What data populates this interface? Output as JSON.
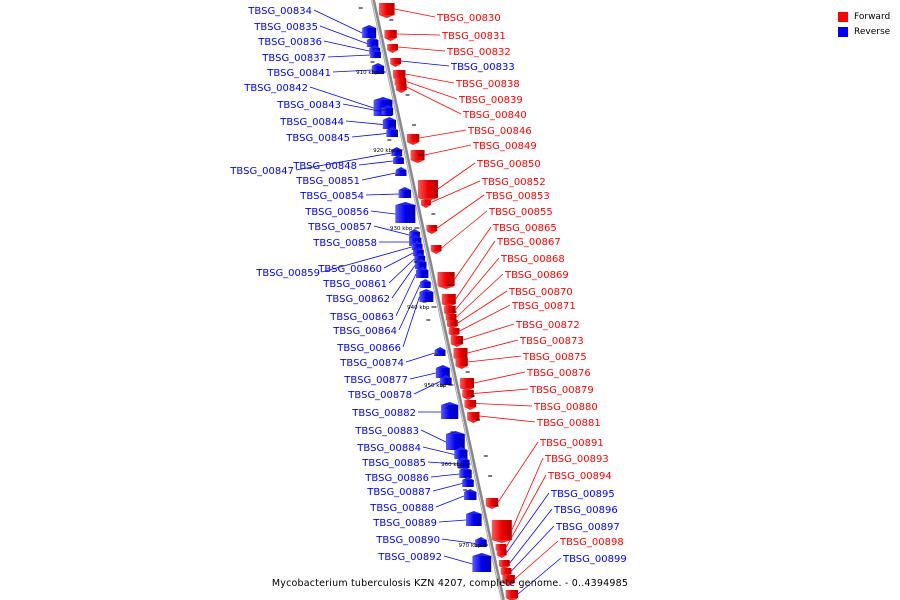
{
  "legend": {
    "forward": {
      "label": "Forward",
      "color": "#ff0000"
    },
    "reverse": {
      "label": "Reverse",
      "color": "#0000ff"
    }
  },
  "caption": "Mycobacterium tuberculosis KZN 4207, complete genome. - 0..4394985",
  "scale_ticks": [
    "910 kbp",
    "920 kbp",
    "930 kbp",
    "940 kbp",
    "950 kbp",
    "960 kbp",
    "970 kbp"
  ],
  "genes": {
    "reverse": [
      "TBSG_00834",
      "TBSG_00835",
      "TBSG_00836",
      "TBSG_00837",
      "TBSG_00841",
      "TBSG_00842",
      "TBSG_00843",
      "TBSG_00844",
      "TBSG_00845",
      "TBSG_00847",
      "TBSG_00848",
      "TBSG_00851",
      "TBSG_00854",
      "TBSG_00856",
      "TBSG_00857",
      "TBSG_00858",
      "TBSG_00859",
      "TBSG_00860",
      "TBSG_00861",
      "TBSG_00862",
      "TBSG_00863",
      "TBSG_00864",
      "TBSG_00866",
      "TBSG_00874",
      "TBSG_00877",
      "TBSG_00878",
      "TBSG_00882",
      "TBSG_00883",
      "TBSG_00884",
      "TBSG_00885",
      "TBSG_00886",
      "TBSG_00887",
      "TBSG_00888",
      "TBSG_00889",
      "TBSG_00890",
      "TBSG_00892"
    ],
    "forward": [
      "TBSG_00830",
      "TBSG_00831",
      "TBSG_00832",
      "TBSG_00833",
      "TBSG_00838",
      "TBSG_00839",
      "TBSG_00840",
      "TBSG_00846",
      "TBSG_00849",
      "TBSG_00850",
      "TBSG_00852",
      "TBSG_00853",
      "TBSG_00855",
      "TBSG_00865",
      "TBSG_00867",
      "TBSG_00868",
      "TBSG_00869",
      "TBSG_00870",
      "TBSG_00871",
      "TBSG_00872",
      "TBSG_00873",
      "TBSG_00875",
      "TBSG_00876",
      "TBSG_00879",
      "TBSG_00880",
      "TBSG_00881",
      "TBSG_00891",
      "TBSG_00893",
      "TBSG_00894",
      "TBSG_00895",
      "TBSG_00896",
      "TBSG_00897",
      "TBSG_00898",
      "TBSG_00899"
    ]
  },
  "forward_label_colors": {
    "TBSG_00833": "#0000ff",
    "TBSG_00895": "#0000ff",
    "TBSG_00896": "#0000ff",
    "TBSG_00897": "#0000ff",
    "TBSG_00899": "#0000ff"
  }
}
